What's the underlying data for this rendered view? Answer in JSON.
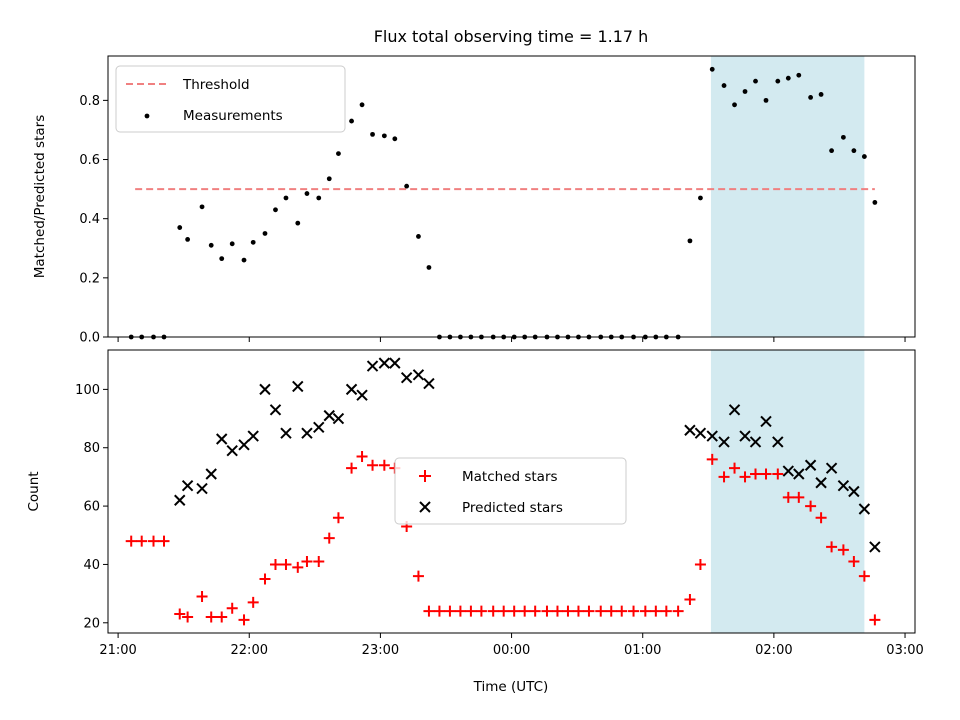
{
  "chart_data": [
    {
      "type": "scatter",
      "title": "Flux total observing time = 1.17 h",
      "xlabel": "",
      "ylabel": "Matched/Predicted stars",
      "xlim": [
        20.923,
        27.076
      ],
      "ylim": [
        0,
        0.95
      ],
      "yticks": [
        0.0,
        0.2,
        0.4,
        0.6,
        0.8
      ],
      "ytick_labels": [
        "0.0",
        "0.2",
        "0.4",
        "0.6",
        "0.8"
      ],
      "xticks": [
        21,
        22,
        23,
        24,
        25,
        26,
        27
      ],
      "grid": false,
      "legend_position": "upper left",
      "highlight_span": {
        "x0": 25.52,
        "x1": 26.69,
        "color": "#d3eaf0"
      },
      "threshold": {
        "name": "Threshold",
        "y": 0.5,
        "x0": 21.13,
        "x1": 26.77,
        "color": "#f08080",
        "style": "dashed"
      },
      "series": [
        {
          "name": "Measurements",
          "color": "#000000",
          "marker": "dot",
          "points": [
            [
              21.1,
              0.0
            ],
            [
              21.18,
              0.0
            ],
            [
              21.27,
              0.0
            ],
            [
              21.35,
              0.0
            ],
            [
              21.47,
              0.37
            ],
            [
              21.53,
              0.33
            ],
            [
              21.64,
              0.44
            ],
            [
              21.71,
              0.31
            ],
            [
              21.79,
              0.265
            ],
            [
              21.87,
              0.315
            ],
            [
              21.96,
              0.26
            ],
            [
              22.03,
              0.32
            ],
            [
              22.12,
              0.35
            ],
            [
              22.2,
              0.43
            ],
            [
              22.28,
              0.47
            ],
            [
              22.37,
              0.385
            ],
            [
              22.44,
              0.485
            ],
            [
              22.53,
              0.47
            ],
            [
              22.61,
              0.535
            ],
            [
              22.68,
              0.62
            ],
            [
              22.78,
              0.73
            ],
            [
              22.86,
              0.785
            ],
            [
              22.94,
              0.685
            ],
            [
              23.03,
              0.68
            ],
            [
              23.11,
              0.67
            ],
            [
              23.2,
              0.51
            ],
            [
              23.29,
              0.34
            ],
            [
              23.37,
              0.235
            ],
            [
              23.45,
              0.0
            ],
            [
              23.53,
              0.0
            ],
            [
              23.61,
              0.0
            ],
            [
              23.69,
              0.0
            ],
            [
              23.77,
              0.0
            ],
            [
              23.86,
              0.0
            ],
            [
              23.94,
              0.0
            ],
            [
              24.02,
              0.0
            ],
            [
              24.1,
              0.0
            ],
            [
              24.18,
              0.0
            ],
            [
              24.27,
              0.0
            ],
            [
              24.35,
              0.0
            ],
            [
              24.43,
              0.0
            ],
            [
              24.51,
              0.0
            ],
            [
              24.59,
              0.0
            ],
            [
              24.68,
              0.0
            ],
            [
              24.76,
              0.0
            ],
            [
              24.84,
              0.0
            ],
            [
              24.93,
              0.0
            ],
            [
              25.02,
              0.0
            ],
            [
              25.1,
              0.0
            ],
            [
              25.18,
              0.0
            ],
            [
              25.27,
              0.0
            ],
            [
              25.36,
              0.325
            ],
            [
              25.44,
              0.47
            ],
            [
              25.53,
              0.905
            ],
            [
              25.62,
              0.85
            ],
            [
              25.7,
              0.785
            ],
            [
              25.78,
              0.83
            ],
            [
              25.86,
              0.865
            ],
            [
              25.94,
              0.8
            ],
            [
              26.03,
              0.865
            ],
            [
              26.11,
              0.875
            ],
            [
              26.19,
              0.885
            ],
            [
              26.28,
              0.81
            ],
            [
              26.36,
              0.82
            ],
            [
              26.44,
              0.63
            ],
            [
              26.53,
              0.675
            ],
            [
              26.61,
              0.63
            ],
            [
              26.69,
              0.61
            ],
            [
              26.77,
              0.455
            ]
          ]
        }
      ]
    },
    {
      "type": "scatter",
      "title": "",
      "xlabel": "Time (UTC)",
      "ylabel": "Count",
      "xlim": [
        20.923,
        27.076
      ],
      "ylim": [
        16.5,
        113.5
      ],
      "yticks": [
        20,
        40,
        60,
        80,
        100
      ],
      "ytick_labels": [
        "20",
        "40",
        "60",
        "80",
        "100"
      ],
      "xticks": [
        21,
        22,
        23,
        24,
        25,
        26,
        27
      ],
      "xtick_labels": [
        "21:00",
        "22:00",
        "23:00",
        "00:00",
        "01:00",
        "02:00",
        "03:00"
      ],
      "grid": false,
      "legend_position": "center",
      "highlight_span": {
        "x0": 25.52,
        "x1": 26.69,
        "color": "#d3eaf0"
      },
      "series": [
        {
          "name": "Matched stars",
          "color": "#ff0000",
          "marker": "plus",
          "points": [
            [
              21.1,
              48
            ],
            [
              21.18,
              48
            ],
            [
              21.27,
              48
            ],
            [
              21.35,
              48
            ],
            [
              21.47,
              23
            ],
            [
              21.53,
              22
            ],
            [
              21.64,
              29
            ],
            [
              21.71,
              22
            ],
            [
              21.79,
              22
            ],
            [
              21.87,
              25
            ],
            [
              21.96,
              21
            ],
            [
              22.03,
              27
            ],
            [
              22.12,
              35
            ],
            [
              22.2,
              40
            ],
            [
              22.28,
              40
            ],
            [
              22.37,
              39
            ],
            [
              22.44,
              41
            ],
            [
              22.53,
              41
            ],
            [
              22.61,
              49
            ],
            [
              22.68,
              56
            ],
            [
              22.78,
              73
            ],
            [
              22.86,
              77
            ],
            [
              22.94,
              74
            ],
            [
              23.03,
              74
            ],
            [
              23.11,
              73
            ],
            [
              23.2,
              53
            ],
            [
              23.29,
              36
            ],
            [
              23.37,
              24
            ],
            [
              23.45,
              24
            ],
            [
              23.53,
              24
            ],
            [
              23.61,
              24
            ],
            [
              23.69,
              24
            ],
            [
              23.77,
              24
            ],
            [
              23.86,
              24
            ],
            [
              23.94,
              24
            ],
            [
              24.02,
              24
            ],
            [
              24.1,
              24
            ],
            [
              24.18,
              24
            ],
            [
              24.27,
              24
            ],
            [
              24.35,
              24
            ],
            [
              24.43,
              24
            ],
            [
              24.51,
              24
            ],
            [
              24.59,
              24
            ],
            [
              24.68,
              24
            ],
            [
              24.76,
              24
            ],
            [
              24.84,
              24
            ],
            [
              24.93,
              24
            ],
            [
              25.02,
              24
            ],
            [
              25.1,
              24
            ],
            [
              25.18,
              24
            ],
            [
              25.27,
              24
            ],
            [
              25.36,
              28
            ],
            [
              25.44,
              40
            ],
            [
              25.53,
              76
            ],
            [
              25.62,
              70
            ],
            [
              25.7,
              73
            ],
            [
              25.78,
              70
            ],
            [
              25.86,
              71
            ],
            [
              25.94,
              71
            ],
            [
              26.03,
              71
            ],
            [
              26.11,
              63
            ],
            [
              26.19,
              63
            ],
            [
              26.28,
              60
            ],
            [
              26.36,
              56
            ],
            [
              26.44,
              46
            ],
            [
              26.53,
              45
            ],
            [
              26.61,
              41
            ],
            [
              26.69,
              36
            ],
            [
              26.77,
              21
            ]
          ]
        },
        {
          "name": "Predicted stars",
          "color": "#000000",
          "marker": "x",
          "points": [
            [
              21.47,
              62
            ],
            [
              21.53,
              67
            ],
            [
              21.64,
              66
            ],
            [
              21.71,
              71
            ],
            [
              21.79,
              83
            ],
            [
              21.87,
              79
            ],
            [
              21.96,
              81
            ],
            [
              22.03,
              84
            ],
            [
              22.12,
              100
            ],
            [
              22.2,
              93
            ],
            [
              22.28,
              85
            ],
            [
              22.37,
              101
            ],
            [
              22.44,
              85
            ],
            [
              22.53,
              87
            ],
            [
              22.61,
              91
            ],
            [
              22.68,
              90
            ],
            [
              22.78,
              100
            ],
            [
              22.86,
              98
            ],
            [
              22.94,
              108
            ],
            [
              23.03,
              109
            ],
            [
              23.11,
              109
            ],
            [
              23.2,
              104
            ],
            [
              23.29,
              105
            ],
            [
              23.37,
              102
            ],
            [
              25.36,
              86
            ],
            [
              25.44,
              85
            ],
            [
              25.53,
              84
            ],
            [
              25.62,
              82
            ],
            [
              25.7,
              93
            ],
            [
              25.78,
              84
            ],
            [
              25.86,
              82
            ],
            [
              25.94,
              89
            ],
            [
              26.03,
              82
            ],
            [
              26.11,
              72
            ],
            [
              26.19,
              71
            ],
            [
              26.28,
              74
            ],
            [
              26.36,
              68
            ],
            [
              26.44,
              73
            ],
            [
              26.53,
              67
            ],
            [
              26.61,
              65
            ],
            [
              26.69,
              59
            ],
            [
              26.77,
              46
            ]
          ]
        }
      ]
    }
  ]
}
